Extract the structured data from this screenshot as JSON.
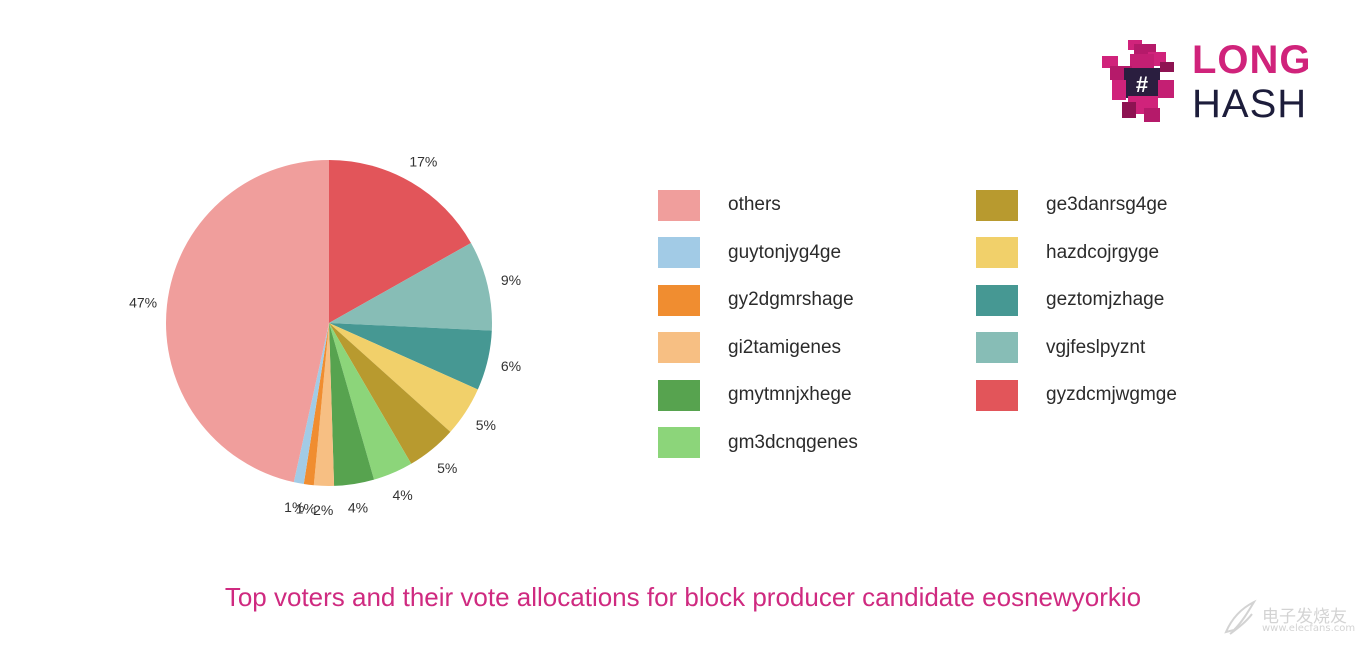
{
  "logo": {
    "line1": "LONG",
    "line2": "HASH",
    "line1_color": "#d0237b",
    "line2_color": "#1d1d3b",
    "icon": "pixel-dinosaur-hash-icon"
  },
  "caption": "Top voters and their vote allocations for block producer candidate eosnewyorkio",
  "watermark": {
    "text": "电子发烧友",
    "url": "www.elecfans.com",
    "icon": "wing-logo-icon"
  },
  "chart_data": {
    "type": "pie",
    "title": "",
    "start": "12 o'clock",
    "direction": "clockwise",
    "slices": [
      {
        "label": "gyzdcmjwgmge",
        "value": 17,
        "display": "17%",
        "color": "#e2555a"
      },
      {
        "label": "vgjfeslpyznt",
        "value": 9,
        "display": "9%",
        "color": "#87bdb6"
      },
      {
        "label": "geztomjzhage",
        "value": 6,
        "display": "6%",
        "color": "#469893"
      },
      {
        "label": "hazdcojrgyge",
        "value": 5,
        "display": "5%",
        "color": "#f1d06a"
      },
      {
        "label": "ge3danrsg4ge",
        "value": 5,
        "display": "5%",
        "color": "#b89a2f"
      },
      {
        "label": "gm3dcnqgenes",
        "value": 4,
        "display": "4%",
        "color": "#8cd57a"
      },
      {
        "label": "gmytmnjxhege",
        "value": 4,
        "display": "4%",
        "color": "#57a34f"
      },
      {
        "label": "gi2tamigenes",
        "value": 2,
        "display": "2%",
        "color": "#f7bf83"
      },
      {
        "label": "gy2dgmrshage",
        "value": 1,
        "display": "1%",
        "color": "#f08d30"
      },
      {
        "label": "guytonjyg4ge",
        "value": 1,
        "display": "1%",
        "color": "#a2cbe6"
      },
      {
        "label": "others",
        "value": 47,
        "display": "47%",
        "color": "#f09e9c"
      }
    ],
    "legend": {
      "placement": "right",
      "columns": [
        [
          "others",
          "guytonjyg4ge",
          "gy2dgmrshage",
          "gi2tamigenes",
          "gmytmnjxhege",
          "gm3dcnqgenes"
        ],
        [
          "ge3danrsg4ge",
          "hazdcojrgyge",
          "geztomjzhage",
          "vgjfeslpyznt",
          "gyzdcmjwgmge"
        ]
      ]
    }
  }
}
